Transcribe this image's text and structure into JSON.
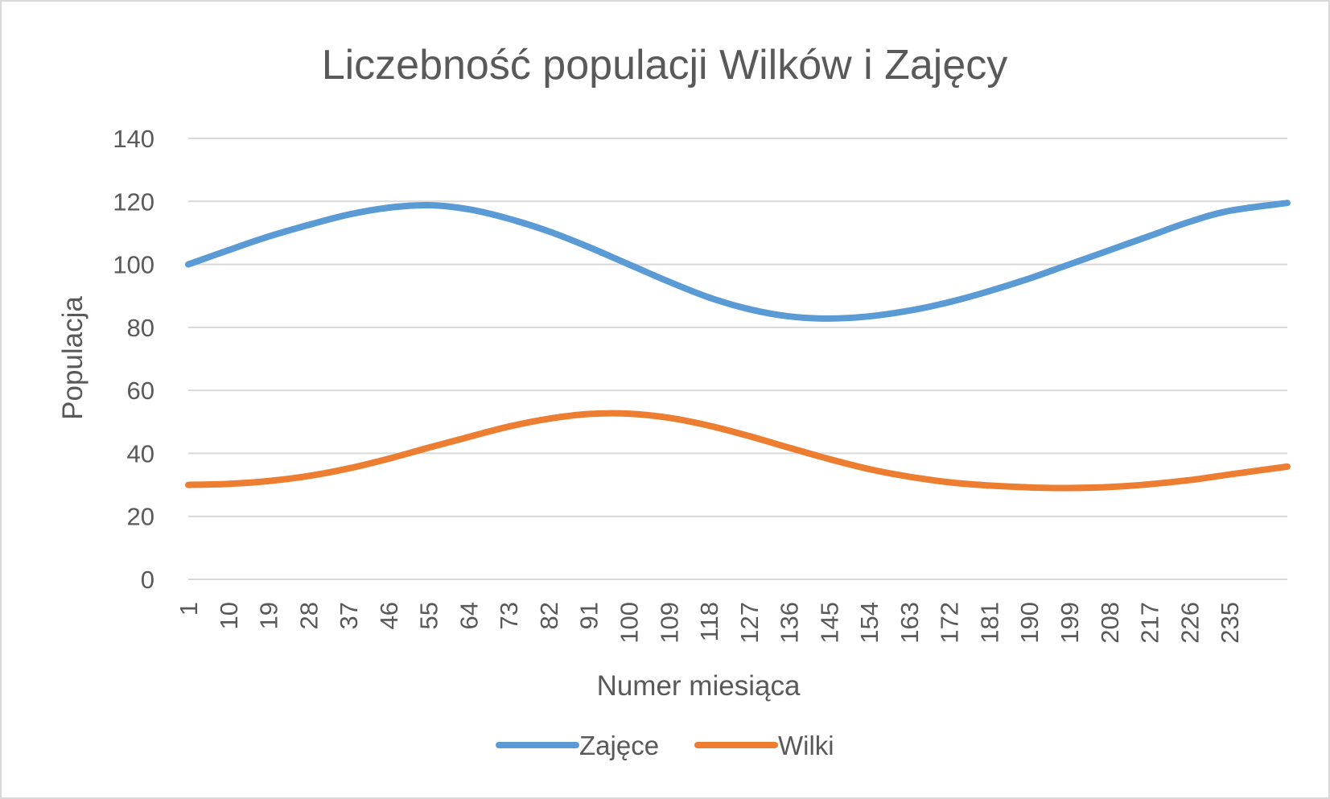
{
  "chart_data": {
    "type": "line",
    "title": "Liczebność populacji Wilków i Zajęcy",
    "xlabel": "Numer miesiąca",
    "ylabel": "Populacja",
    "ylim": [
      0,
      140
    ],
    "y_ticks": [
      0,
      20,
      40,
      60,
      80,
      100,
      120,
      140
    ],
    "x_range": [
      1,
      248
    ],
    "x_tick_labels": [
      1,
      10,
      19,
      28,
      37,
      46,
      55,
      64,
      73,
      82,
      91,
      100,
      109,
      118,
      127,
      136,
      145,
      154,
      163,
      172,
      181,
      190,
      199,
      208,
      217,
      226,
      235
    ],
    "grid": "horizontal",
    "legend_position": "bottom",
    "series": [
      {
        "name": "Zajęce",
        "color": "#5b9bd5",
        "x": [
          1,
          10,
          19,
          28,
          37,
          46,
          55,
          64,
          73,
          82,
          91,
          100,
          109,
          118,
          127,
          136,
          145,
          154,
          163,
          172,
          181,
          190,
          199,
          208,
          217,
          226,
          235,
          248
        ],
        "values": [
          100,
          104.5,
          108.8,
          112.5,
          115.8,
          118,
          118.8,
          117.5,
          114.5,
          110.5,
          105.5,
          100,
          94.5,
          89.5,
          85.8,
          83.5,
          82.8,
          83.5,
          85.3,
          88,
          91.5,
          95.5,
          100,
          104.5,
          109,
          113.5,
          117,
          119.5
        ]
      },
      {
        "name": "Wilki",
        "color": "#ed7d31",
        "x": [
          1,
          10,
          19,
          28,
          37,
          46,
          55,
          64,
          73,
          82,
          91,
          100,
          109,
          118,
          127,
          136,
          145,
          154,
          163,
          172,
          181,
          190,
          199,
          208,
          217,
          226,
          235,
          248
        ],
        "values": [
          30,
          30.3,
          31.2,
          32.8,
          35.2,
          38.3,
          41.8,
          45.2,
          48.5,
          51,
          52.5,
          52.6,
          51.3,
          48.8,
          45.5,
          41.8,
          38.2,
          35,
          32.6,
          30.8,
          29.8,
          29.2,
          29,
          29.3,
          30.2,
          31.5,
          33.3,
          35.8
        ]
      }
    ]
  }
}
